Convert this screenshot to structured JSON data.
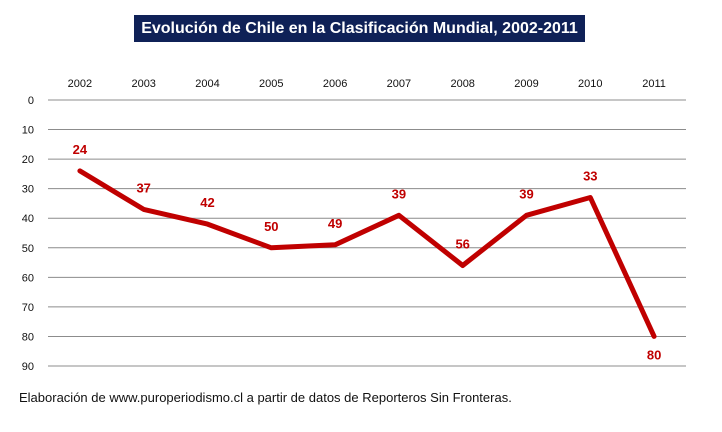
{
  "chart_data": {
    "type": "line",
    "title": "Evolución de Chile en la Clasificación Mundial, 2002-2011",
    "xlabel": "",
    "ylabel": "",
    "categories": [
      "2002",
      "2003",
      "2004",
      "2005",
      "2006",
      "2007",
      "2008",
      "2009",
      "2010",
      "2011"
    ],
    "series": [
      {
        "values": [
          24,
          37,
          42,
          50,
          49,
          39,
          56,
          39,
          33,
          80
        ]
      }
    ],
    "ylim": [
      0,
      90
    ],
    "y_inverted": true,
    "yticks": [
      0,
      10,
      20,
      30,
      40,
      50,
      60,
      70,
      80,
      90
    ],
    "grid": true,
    "legend": "none",
    "line_color": "#c00000",
    "label_color": "#c00000",
    "x_axis_position": "top"
  },
  "footer": {
    "source": "Elaboración de www.puroperiodismo.cl a partir de datos de Reporteros Sin Fronteras."
  },
  "colors": {
    "title_bg": "#0f2157",
    "title_text": "#ffffff",
    "grid": "#8c8c8c"
  }
}
